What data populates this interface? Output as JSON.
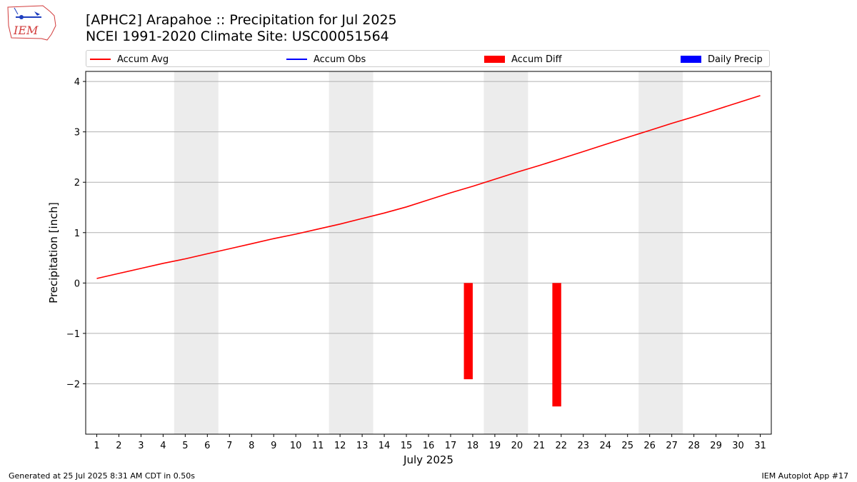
{
  "logo": {
    "text": "IEM"
  },
  "chart_data": {
    "type": "line",
    "title": "[APHC2] Arapahoe :: Precipitation for Jul 2025",
    "subtitle": "NCEI 1991-2020 Climate Site: USC00051564",
    "xlabel": "July 2025",
    "ylabel": "Precipitation [inch]",
    "ylim": [
      -3.0,
      4.2
    ],
    "yticks": [
      -2,
      -1,
      0,
      1,
      2,
      3,
      4
    ],
    "ytick_labels": [
      "−2",
      "−1",
      "0",
      "1",
      "2",
      "3",
      "4"
    ],
    "x": [
      1,
      2,
      3,
      4,
      5,
      6,
      7,
      8,
      9,
      10,
      11,
      12,
      13,
      14,
      15,
      16,
      17,
      18,
      19,
      20,
      21,
      22,
      23,
      24,
      25,
      26,
      27,
      28,
      29,
      30,
      31
    ],
    "x_tick_labels": [
      "1",
      "2",
      "3",
      "4",
      "5",
      "6",
      "7",
      "8",
      "9",
      "10",
      "11",
      "12",
      "13",
      "14",
      "15",
      "16",
      "17",
      "18",
      "19",
      "20",
      "21",
      "22",
      "23",
      "24",
      "25",
      "26",
      "27",
      "28",
      "29",
      "30",
      "31"
    ],
    "grid": "horizontal",
    "legend": {
      "placement": "top",
      "entries": [
        {
          "label": "Accum Avg",
          "marker": "line",
          "color": "#ff0000"
        },
        {
          "label": "Accum Obs",
          "marker": "line",
          "color": "#0000ff"
        },
        {
          "label": "Accum Diff",
          "marker": "box",
          "color": "#ff0000"
        },
        {
          "label": "Daily Precip",
          "marker": "box",
          "color": "#0000ff"
        }
      ]
    },
    "weekend_bands": [
      [
        5,
        6
      ],
      [
        12,
        13
      ],
      [
        19,
        20
      ],
      [
        26,
        27
      ]
    ],
    "series": [
      {
        "name": "Accum Avg",
        "type": "line",
        "color": "#ff0000",
        "values": [
          0.09,
          0.19,
          0.29,
          0.39,
          0.48,
          0.58,
          0.68,
          0.78,
          0.88,
          0.97,
          1.07,
          1.17,
          1.28,
          1.39,
          1.51,
          1.65,
          1.79,
          1.92,
          2.06,
          2.2,
          2.33,
          2.47,
          2.61,
          2.75,
          2.89,
          3.03,
          3.17,
          3.3,
          3.44,
          3.58,
          3.72
        ]
      },
      {
        "name": "Accum Diff",
        "type": "bar",
        "color": "#ff0000",
        "points": [
          {
            "x": 17.8,
            "value": -1.91
          },
          {
            "x": 21.8,
            "value": -2.45
          }
        ]
      }
    ]
  },
  "footer": {
    "left": "Generated at 25 Jul 2025 8:31 AM CDT in 0.50s",
    "right": "IEM Autoplot App #17"
  }
}
